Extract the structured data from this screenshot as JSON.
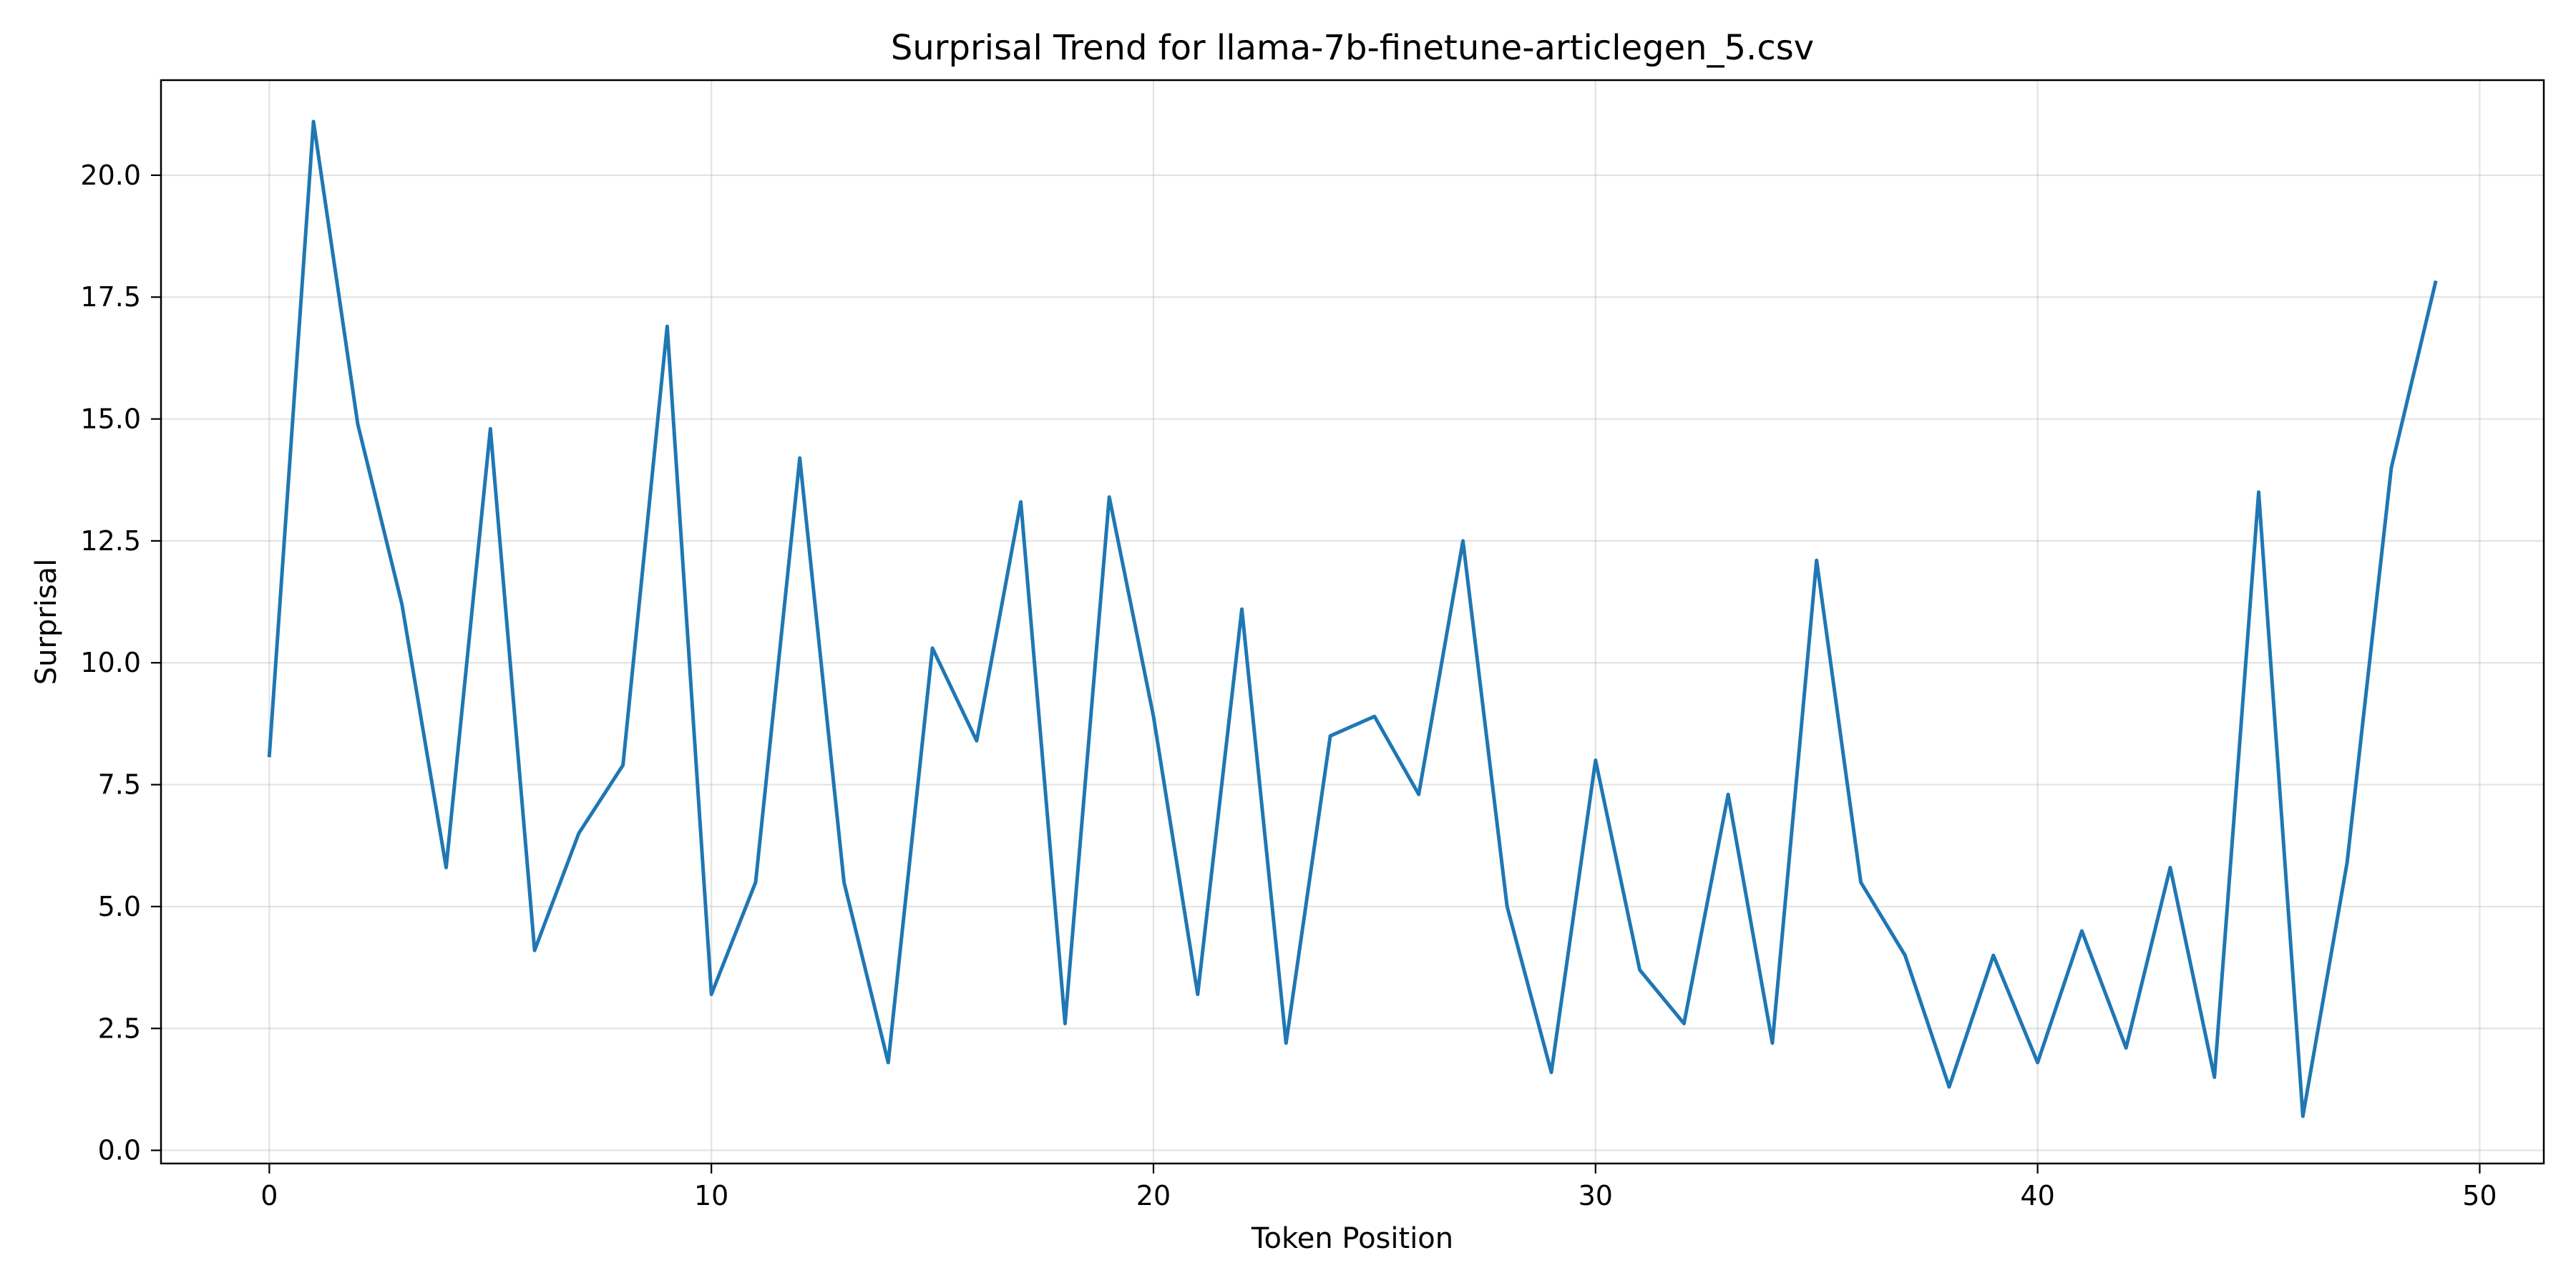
{
  "chart_data": {
    "type": "line",
    "title": "Surprisal Trend for llama-7b-finetune-articlegen_5.csv",
    "xlabel": "Token Position",
    "ylabel": "Surprisal",
    "xlim": [
      -2.45,
      51.45
    ],
    "ylim": [
      -0.27,
      21.95
    ],
    "x_ticks": [
      0,
      10,
      20,
      30,
      40,
      50
    ],
    "y_ticks": [
      0.0,
      2.5,
      5.0,
      7.5,
      10.0,
      12.5,
      15.0,
      17.5,
      20.0
    ],
    "x_tick_labels": [
      "0",
      "10",
      "20",
      "30",
      "40",
      "50"
    ],
    "y_tick_labels": [
      "0.0",
      "2.5",
      "5.0",
      "7.5",
      "10.0",
      "12.5",
      "15.0",
      "17.5",
      "20.0"
    ],
    "grid": true,
    "line_color": "#1f77b4",
    "series": [
      {
        "x": [
          0,
          1,
          2,
          3,
          4,
          5,
          6,
          7,
          8,
          9,
          10,
          11,
          12,
          13,
          14,
          15,
          16,
          17,
          18,
          19,
          20,
          21,
          22,
          23,
          24,
          25,
          26,
          27,
          28,
          29,
          30,
          31,
          32,
          33,
          34,
          35,
          36,
          37,
          38,
          39,
          40,
          41,
          42,
          43,
          44,
          45,
          46,
          47,
          48,
          49
        ],
        "values": [
          8.1,
          21.1,
          14.9,
          11.2,
          5.8,
          14.8,
          4.1,
          6.5,
          7.9,
          16.9,
          3.2,
          5.5,
          14.2,
          5.5,
          1.8,
          10.3,
          8.4,
          13.3,
          2.6,
          13.4,
          8.9,
          3.2,
          11.1,
          2.2,
          8.5,
          8.9,
          7.3,
          12.5,
          5.0,
          1.6,
          8.0,
          3.7,
          2.6,
          7.3,
          2.2,
          12.1,
          5.5,
          4.0,
          1.3,
          4.0,
          1.8,
          4.5,
          2.1,
          5.8,
          1.5,
          13.5,
          0.7,
          5.9,
          14.0,
          17.8
        ]
      }
    ]
  }
}
